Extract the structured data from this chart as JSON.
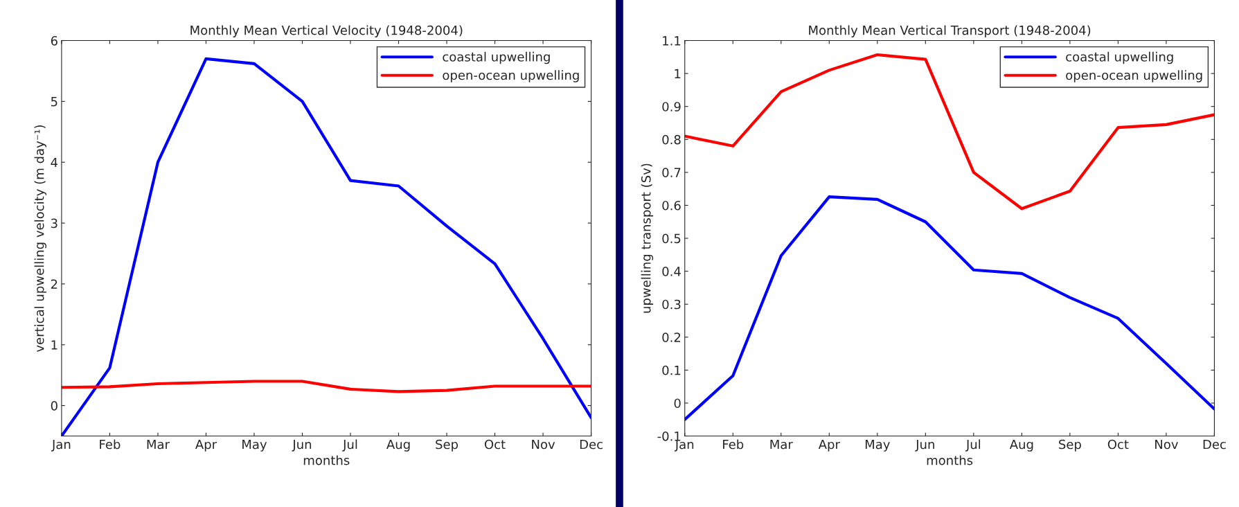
{
  "chart_data": [
    {
      "type": "line",
      "title": "Monthly Mean Vertical Velocity (1948-2004)",
      "xlabel": "months",
      "ylabel": "vertical upwelling velocity (m day⁻¹)",
      "categories": [
        "Jan",
        "Feb",
        "Mar",
        "Apr",
        "May",
        "Jun",
        "Jul",
        "Aug",
        "Sep",
        "Oct",
        "Nov",
        "Dec"
      ],
      "series": [
        {
          "name": "coastal upwelling",
          "color": "#0000ff",
          "values": [
            -0.5,
            0.62,
            4.0,
            5.7,
            5.62,
            5.0,
            3.7,
            3.61,
            2.95,
            2.33,
            1.1,
            -0.2
          ]
        },
        {
          "name": "open-ocean upwelling",
          "color": "#ff0000",
          "values": [
            0.3,
            0.31,
            0.36,
            0.38,
            0.4,
            0.4,
            0.27,
            0.23,
            0.25,
            0.32,
            0.32,
            0.32
          ]
        }
      ],
      "ylim": [
        -0.5,
        6
      ],
      "yticks": [
        0,
        1,
        2,
        3,
        4,
        5,
        6
      ],
      "grid": false,
      "legend": "top right",
      "marker": "none",
      "line_style": "solid"
    },
    {
      "type": "line",
      "title": "Monthly Mean Vertical Transport (1948-2004)",
      "xlabel": "months",
      "ylabel": "upwelling transport (Sv)",
      "categories": [
        "Jan",
        "Feb",
        "Mar",
        "Apr",
        "May",
        "Jun",
        "Jul",
        "Aug",
        "Sep",
        "Oct",
        "Nov",
        "Dec"
      ],
      "series": [
        {
          "name": "coastal upwelling",
          "color": "#0000ff",
          "values": [
            -0.05,
            0.083,
            0.447,
            0.626,
            0.618,
            0.55,
            0.404,
            0.393,
            0.32,
            0.257,
            0.12,
            -0.018
          ]
        },
        {
          "name": "open-ocean upwelling",
          "color": "#ff0000",
          "values": [
            0.81,
            0.78,
            0.945,
            1.01,
            1.057,
            1.043,
            0.7,
            0.59,
            0.643,
            0.836,
            0.845,
            0.875
          ]
        }
      ],
      "ylim": [
        -0.1,
        1.1
      ],
      "yticks": [
        -0.1,
        0,
        0.1,
        0.2,
        0.3,
        0.4,
        0.5,
        0.6,
        0.7,
        0.8,
        0.9,
        1,
        1.1
      ],
      "grid": false,
      "legend": "top right",
      "marker": "none",
      "line_style": "solid"
    }
  ]
}
